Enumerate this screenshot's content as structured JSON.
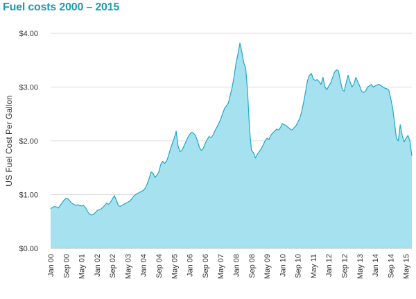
{
  "chart_data": {
    "type": "area",
    "title": "Fuel costs 2000 – 2015",
    "xlabel": "",
    "ylabel": "US Fuel Cost Per Gallon",
    "ylim": [
      0,
      4
    ],
    "y_ticks": [
      "$0.00",
      "$1.00",
      "$2.00",
      "$3.00",
      "$4.00"
    ],
    "x_ticks": [
      "Jan 00",
      "Sep 00",
      "May 01",
      "Jan 02",
      "Sep 02",
      "May 03",
      "Jan 04",
      "Sep 04",
      "May 05",
      "Jan 06",
      "Sep 06",
      "May 07",
      "Jan 08",
      "Sep 08",
      "May 09",
      "Jan 10",
      "Sep 10",
      "May 11",
      "Jan 12",
      "Sep 12",
      "May 13",
      "Jan 14",
      "Sep 14",
      "May 15"
    ],
    "grid": "horizontal",
    "fill_color": "#a6e1f0",
    "line_color": "#1fa7c4",
    "series": [
      {
        "x": [
          "2000-01",
          "2000-02",
          "2000-03",
          "2000-04",
          "2000-05",
          "2000-06",
          "2000-07",
          "2000-08",
          "2000-09",
          "2000-10",
          "2000-11",
          "2000-12",
          "2001-01",
          "2001-02",
          "2001-03",
          "2001-04",
          "2001-05",
          "2001-06",
          "2001-07",
          "2001-08",
          "2001-09",
          "2001-10",
          "2001-11",
          "2001-12",
          "2002-01",
          "2002-02",
          "2002-03",
          "2002-04",
          "2002-05",
          "2002-06",
          "2002-07",
          "2002-08",
          "2002-09",
          "2002-10",
          "2002-11",
          "2002-12",
          "2003-01",
          "2003-02",
          "2003-03",
          "2003-04",
          "2003-05",
          "2003-06",
          "2003-07",
          "2003-08",
          "2003-09",
          "2003-10",
          "2003-11",
          "2003-12",
          "2004-01",
          "2004-02",
          "2004-03",
          "2004-04",
          "2004-05",
          "2004-06",
          "2004-07",
          "2004-08",
          "2004-09",
          "2004-10",
          "2004-11",
          "2004-12",
          "2005-01",
          "2005-02",
          "2005-03",
          "2005-04",
          "2005-05",
          "2005-06",
          "2005-07",
          "2005-08",
          "2005-09",
          "2005-10",
          "2005-11",
          "2005-12",
          "2006-01",
          "2006-02",
          "2006-03",
          "2006-04",
          "2006-05",
          "2006-06",
          "2006-07",
          "2006-08",
          "2006-09",
          "2006-10",
          "2006-11",
          "2006-12",
          "2007-01",
          "2007-02",
          "2007-03",
          "2007-04",
          "2007-05",
          "2007-06",
          "2007-07",
          "2007-08",
          "2007-09",
          "2007-10",
          "2007-11",
          "2007-12",
          "2008-01",
          "2008-02",
          "2008-03",
          "2008-04",
          "2008-05",
          "2008-06",
          "2008-07",
          "2008-08",
          "2008-09",
          "2008-10",
          "2008-11",
          "2008-12",
          "2009-01",
          "2009-02",
          "2009-03",
          "2009-04",
          "2009-05",
          "2009-06",
          "2009-07",
          "2009-08",
          "2009-09",
          "2009-10",
          "2009-11",
          "2009-12",
          "2010-01",
          "2010-02",
          "2010-03",
          "2010-04",
          "2010-05",
          "2010-06",
          "2010-07",
          "2010-08",
          "2010-09",
          "2010-10",
          "2010-11",
          "2010-12",
          "2011-01",
          "2011-02",
          "2011-03",
          "2011-04",
          "2011-05",
          "2011-06",
          "2011-07",
          "2011-08",
          "2011-09",
          "2011-10",
          "2011-11",
          "2011-12",
          "2012-01",
          "2012-02",
          "2012-03",
          "2012-04",
          "2012-05",
          "2012-06",
          "2012-07",
          "2012-08",
          "2012-09",
          "2012-10",
          "2012-11",
          "2012-12",
          "2013-01",
          "2013-02",
          "2013-03",
          "2013-04",
          "2013-05",
          "2013-06",
          "2013-07",
          "2013-08",
          "2013-09",
          "2013-10",
          "2013-11",
          "2013-12",
          "2014-01",
          "2014-02",
          "2014-03",
          "2014-04",
          "2014-05",
          "2014-06",
          "2014-07",
          "2014-08",
          "2014-09",
          "2014-10",
          "2014-11",
          "2014-12",
          "2015-01",
          "2015-02",
          "2015-03",
          "2015-04",
          "2015-05",
          "2015-06",
          "2015-07",
          "2015-08"
        ],
        "values": [
          0.74,
          0.76,
          0.78,
          0.77,
          0.75,
          0.8,
          0.85,
          0.9,
          0.93,
          0.92,
          0.88,
          0.84,
          0.82,
          0.8,
          0.81,
          0.8,
          0.79,
          0.8,
          0.76,
          0.7,
          0.64,
          0.62,
          0.63,
          0.66,
          0.7,
          0.72,
          0.73,
          0.76,
          0.8,
          0.84,
          0.82,
          0.86,
          0.92,
          0.98,
          0.9,
          0.8,
          0.78,
          0.8,
          0.82,
          0.84,
          0.86,
          0.88,
          0.92,
          0.97,
          1.0,
          1.02,
          1.04,
          1.06,
          1.08,
          1.12,
          1.2,
          1.3,
          1.42,
          1.4,
          1.32,
          1.36,
          1.42,
          1.56,
          1.62,
          1.58,
          1.62,
          1.72,
          1.85,
          1.95,
          2.05,
          2.18,
          1.9,
          1.8,
          1.82,
          1.9,
          1.98,
          2.06,
          2.12,
          2.16,
          2.14,
          2.1,
          2.0,
          1.88,
          1.82,
          1.86,
          1.95,
          2.02,
          2.08,
          2.06,
          2.1,
          2.18,
          2.25,
          2.32,
          2.4,
          2.5,
          2.6,
          2.65,
          2.7,
          2.85,
          3.0,
          3.2,
          3.45,
          3.62,
          3.82,
          3.65,
          3.45,
          3.35,
          2.9,
          2.2,
          1.82,
          1.78,
          1.68,
          1.75,
          1.8,
          1.85,
          1.92,
          2.0,
          2.05,
          2.02,
          2.1,
          2.15,
          2.18,
          2.22,
          2.2,
          2.25,
          2.32,
          2.3,
          2.28,
          2.25,
          2.22,
          2.2,
          2.24,
          2.28,
          2.35,
          2.42,
          2.55,
          2.72,
          2.92,
          3.12,
          3.22,
          3.25,
          3.15,
          3.12,
          3.14,
          3.1,
          3.05,
          3.18,
          3.0,
          2.95,
          3.02,
          3.08,
          3.18,
          3.28,
          3.32,
          3.3,
          3.12,
          2.95,
          2.92,
          3.08,
          3.22,
          3.1,
          3.0,
          3.05,
          3.18,
          3.1,
          3.02,
          2.92,
          2.9,
          2.92,
          3.0,
          3.02,
          3.05,
          3.0,
          3.02,
          3.04,
          3.05,
          3.03,
          3.0,
          2.98,
          2.97,
          2.95,
          2.8,
          2.62,
          2.35,
          2.05,
          2.0,
          2.3,
          2.1,
          1.98,
          2.05,
          2.1,
          2.0,
          1.72
        ]
      }
    ]
  }
}
